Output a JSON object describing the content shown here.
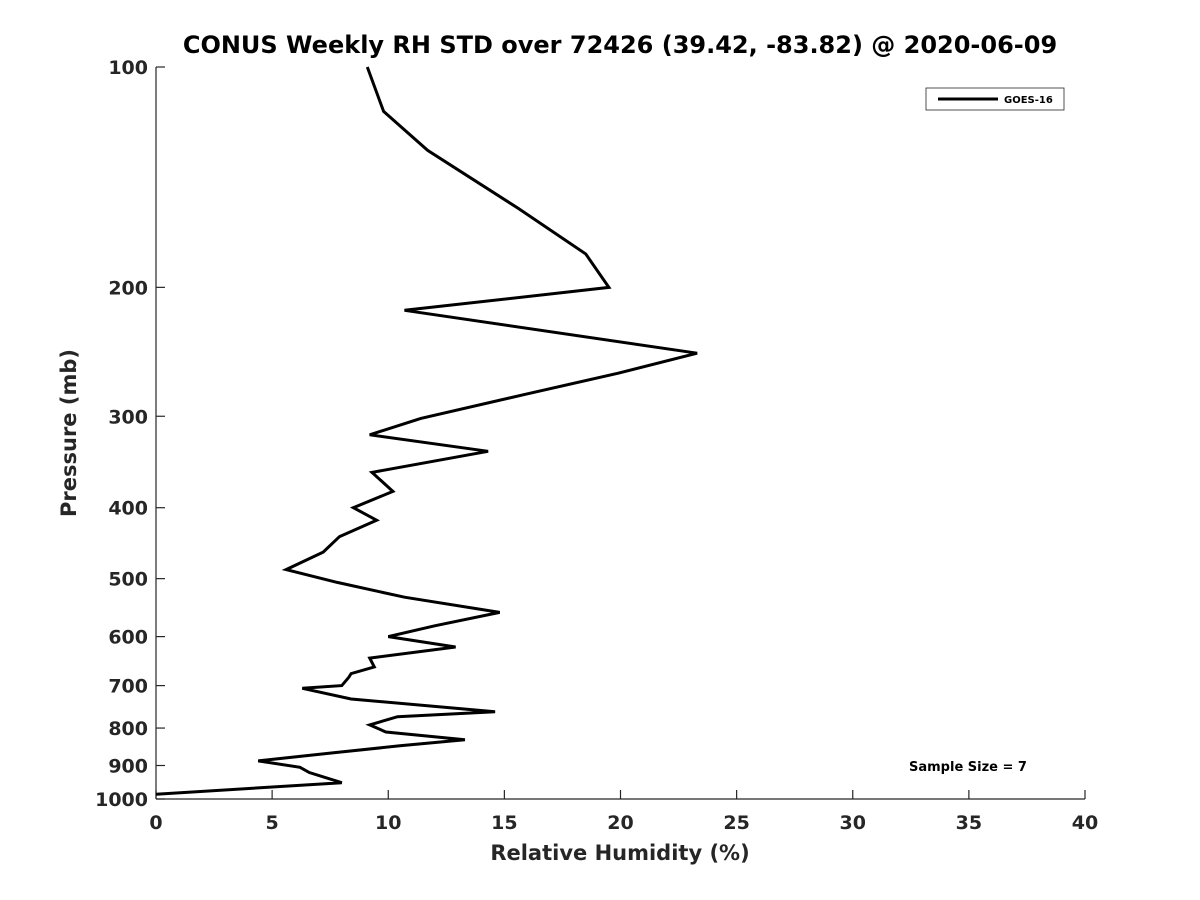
{
  "chart_data": {
    "type": "line",
    "title": "CONUS Weekly RH STD over 72426 (39.42, -83.82) @ 2020-06-09",
    "xlabel": "Relative Humidity (%)",
    "ylabel": "Pressure (mb)",
    "xlim": [
      0,
      40
    ],
    "ylim": [
      100,
      1000
    ],
    "yscale": "log",
    "y_reversed": true,
    "grid": false,
    "legend_position": "top-right",
    "xticks": [
      0,
      5,
      10,
      15,
      20,
      25,
      30,
      35,
      40
    ],
    "xtick_labels": [
      "0",
      "5",
      "10",
      "15",
      "20",
      "25",
      "30",
      "35",
      "40"
    ],
    "yticks": [
      100,
      200,
      300,
      400,
      500,
      600,
      700,
      800,
      900,
      1000
    ],
    "ytick_labels": [
      "100",
      "200",
      "300",
      "400",
      "500",
      "600",
      "700",
      "800",
      "900",
      "1000"
    ],
    "series": [
      {
        "name": "GOES-16",
        "color": "#000000",
        "x": [
          9.1,
          9.8,
          11.7,
          15.6,
          18.5,
          19.5,
          10.7,
          23.3,
          19.9,
          15.9,
          11.4,
          9.2,
          14.3,
          9.3,
          10.2,
          8.5,
          9.5,
          7.9,
          7.2,
          5.6,
          7.8,
          10.7,
          14.8,
          12.0,
          10.0,
          12.9,
          9.2,
          9.4,
          8.4,
          8.3,
          8.0,
          6.3,
          8.4,
          14.6,
          10.4,
          9.2,
          9.9,
          13.3,
          10.5,
          7.6,
          4.4,
          6.2,
          6.6,
          8.0,
          0.0
        ],
        "y": [
          100,
          115,
          130,
          156,
          180,
          200,
          215,
          246,
          262,
          280,
          302,
          318,
          335,
          358,
          380,
          400,
          416,
          438,
          460,
          486,
          506,
          530,
          556,
          580,
          600,
          620,
          642,
          660,
          674,
          682,
          700,
          706,
          730,
          760,
          772,
          792,
          810,
          830,
          846,
          865,
          887,
          905,
          920,
          950,
          985
        ]
      }
    ],
    "annotations": [
      {
        "text": "Sample Size = 7"
      }
    ]
  }
}
